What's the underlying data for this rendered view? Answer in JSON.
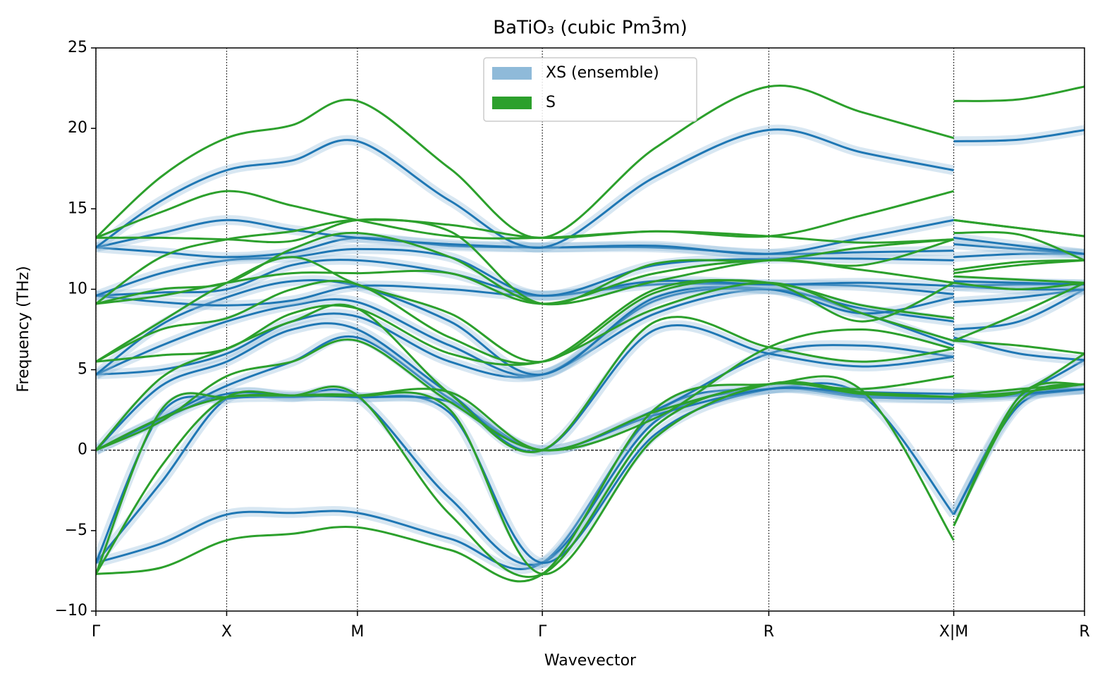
{
  "chart_data": {
    "type": "band",
    "title": "BaTiO₃ (cubic Pm3̄m)",
    "xlabel": "Wavevector",
    "ylabel": "Frequency (THz)",
    "x": [
      0,
      0.25,
      0.5,
      0.75,
      1.0,
      1.354,
      1.707,
      2.14,
      2.573,
      2.93,
      3.28,
      null,
      3.28,
      3.53,
      3.78
    ],
    "xlim": [
      0,
      3.78
    ],
    "xticks": [
      {
        "value": 0,
        "label": "Γ"
      },
      {
        "value": 0.5,
        "label": "X"
      },
      {
        "value": 1.0,
        "label": "M"
      },
      {
        "value": 1.707,
        "label": "Γ"
      },
      {
        "value": 2.573,
        "label": "R"
      },
      {
        "value": 3.28,
        "label": "X|M"
      },
      {
        "value": 3.78,
        "label": "R"
      }
    ],
    "ylim": [
      -10,
      25
    ],
    "yticks": [
      {
        "value": -10,
        "label": "−10"
      },
      {
        "value": -5,
        "label": "−5"
      },
      0,
      5,
      10,
      15,
      20,
      25
    ],
    "xgrid": true,
    "hline": 0,
    "legend": "upper center",
    "series": [
      {
        "name": "XS (ensemble)",
        "color": "#1f77b4",
        "band_color": "#8fbad9",
        "bands": [
          [
            -7.0,
            -5.8,
            -4.0,
            -3.9,
            -3.9,
            -5.5,
            -7.0,
            2.3,
            3.8,
            3.4,
            -4.0,
            null,
            -4.0,
            3.0,
            3.8
          ],
          [
            -7.0,
            -2.0,
            3.2,
            3.3,
            3.3,
            -3.0,
            -7.0,
            1.8,
            3.8,
            3.3,
            3.2,
            null,
            -4.0,
            2.8,
            3.8
          ],
          [
            -7.0,
            2.3,
            3.2,
            3.3,
            3.3,
            2.3,
            -7.0,
            1.0,
            3.8,
            3.4,
            3.2,
            null,
            3.2,
            3.4,
            3.8
          ],
          [
            0,
            1.9,
            3.5,
            3.4,
            3.3,
            3.0,
            0,
            2.2,
            3.8,
            3.6,
            3.5,
            null,
            3.3,
            3.5,
            3.8
          ],
          [
            0,
            2.0,
            4.0,
            5.5,
            7.0,
            3.2,
            0,
            2.5,
            6.0,
            6.5,
            5.8,
            null,
            3.5,
            3.6,
            5.6
          ],
          [
            0,
            4.0,
            5.5,
            7.5,
            7.5,
            3.5,
            0,
            7.5,
            6.0,
            5.2,
            5.8,
            null,
            7.0,
            6.0,
            5.6
          ],
          [
            4.7,
            5.0,
            6.0,
            8.0,
            8.3,
            5.5,
            4.7,
            8.5,
            10.0,
            8.5,
            6.5,
            null,
            7.5,
            8.0,
            10.0
          ],
          [
            4.7,
            6.5,
            8.0,
            9.0,
            9.2,
            6.5,
            4.7,
            9.3,
            10.0,
            8.8,
            8.0,
            null,
            9.2,
            9.5,
            10.0
          ],
          [
            4.7,
            7.8,
            9.5,
            10.5,
            10.2,
            8.0,
            4.7,
            9.5,
            10.0,
            8.5,
            9.5,
            null,
            10.2,
            10.0,
            10.0
          ],
          [
            9.6,
            9.2,
            9.0,
            9.3,
            10.2,
            10.0,
            9.6,
            10.3,
            10.3,
            10.2,
            9.7,
            null,
            10.2,
            10.3,
            10.3
          ],
          [
            9.6,
            9.8,
            10.0,
            11.5,
            11.8,
            11.0,
            9.6,
            10.5,
            10.3,
            10.4,
            10.2,
            null,
            10.5,
            10.4,
            10.3
          ],
          [
            9.6,
            11.0,
            11.8,
            12.0,
            12.5,
            12.0,
            9.6,
            11.5,
            11.9,
            11.9,
            11.8,
            null,
            12.0,
            12.2,
            12.2
          ],
          [
            12.6,
            12.3,
            12.0,
            12.3,
            13.2,
            12.7,
            12.6,
            12.6,
            12.2,
            12.3,
            12.4,
            null,
            12.8,
            12.5,
            12.2
          ],
          [
            12.6,
            13.5,
            14.3,
            13.7,
            13.2,
            12.8,
            12.6,
            12.7,
            12.2,
            13.2,
            14.3,
            null,
            13.2,
            12.7,
            12.2
          ],
          [
            12.6,
            15.5,
            17.4,
            18.0,
            19.2,
            15.5,
            12.6,
            17.0,
            19.9,
            18.5,
            17.4,
            null,
            19.2,
            19.3,
            19.9
          ]
        ]
      },
      {
        "name": "S",
        "color": "#2ca02c",
        "bands": [
          [
            -7.7,
            -7.3,
            -5.6,
            -5.2,
            -4.8,
            -6.2,
            -7.7,
            2.6,
            4.1,
            3.7,
            -5.6,
            null,
            -4.7,
            3.3,
            4.1
          ],
          [
            -7.7,
            -1.0,
            3.3,
            3.4,
            3.4,
            -4.0,
            -7.7,
            1.5,
            4.1,
            3.5,
            3.3,
            null,
            -4.7,
            3.0,
            4.1
          ],
          [
            -7.7,
            2.5,
            3.3,
            3.4,
            3.4,
            2.5,
            -7.7,
            0.8,
            4.1,
            3.6,
            3.3,
            null,
            3.3,
            3.6,
            4.1
          ],
          [
            0,
            2.0,
            3.3,
            3.4,
            3.4,
            3.6,
            0,
            2.4,
            4.1,
            3.8,
            4.6,
            null,
            3.4,
            3.8,
            4.1
          ],
          [
            0,
            1.8,
            4.6,
            5.5,
            6.8,
            3.0,
            0,
            2.0,
            6.4,
            7.5,
            6.3,
            null,
            3.4,
            3.6,
            6.0
          ],
          [
            0,
            4.5,
            6.3,
            8.0,
            8.8,
            3.5,
            0,
            8.0,
            6.4,
            5.5,
            6.3,
            null,
            6.8,
            6.5,
            6.0
          ],
          [
            5.5,
            5.9,
            6.3,
            8.5,
            8.8,
            6.0,
            5.5,
            8.8,
            10.4,
            8.5,
            6.8,
            null,
            6.8,
            8.5,
            10.4
          ],
          [
            5.5,
            7.5,
            8.2,
            10.0,
            10.3,
            7.0,
            5.5,
            10.0,
            10.4,
            9.0,
            8.2,
            null,
            10.4,
            10.0,
            10.4
          ],
          [
            5.5,
            8.0,
            10.4,
            12.0,
            10.3,
            8.5,
            5.5,
            9.8,
            10.4,
            8.0,
            10.4,
            null,
            10.8,
            10.6,
            10.4
          ],
          [
            9.1,
            9.6,
            10.4,
            11.0,
            11.0,
            11.0,
            9.1,
            11.0,
            11.8,
            11.2,
            10.4,
            null,
            11.0,
            11.5,
            11.8
          ],
          [
            9.1,
            10.0,
            10.4,
            12.5,
            13.5,
            12.0,
            9.1,
            10.5,
            11.8,
            11.5,
            13.1,
            null,
            11.2,
            11.7,
            11.8
          ],
          [
            9.1,
            12.0,
            13.1,
            13.6,
            14.3,
            13.6,
            9.1,
            11.6,
            11.8,
            12.6,
            13.1,
            null,
            13.5,
            13.4,
            11.8
          ],
          [
            13.2,
            13.2,
            13.1,
            13.0,
            14.3,
            14.0,
            13.2,
            13.6,
            13.3,
            12.9,
            13.1,
            null,
            14.3,
            13.8,
            13.3
          ],
          [
            13.2,
            14.8,
            16.1,
            15.2,
            14.3,
            13.3,
            13.2,
            13.6,
            13.3,
            14.6,
            16.1,
            null,
            14.3,
            13.8,
            13.3
          ],
          [
            13.2,
            17.0,
            19.4,
            20.2,
            21.7,
            17.5,
            13.2,
            18.8,
            22.6,
            21.0,
            19.4,
            null,
            21.7,
            21.8,
            22.6
          ]
        ]
      }
    ]
  }
}
